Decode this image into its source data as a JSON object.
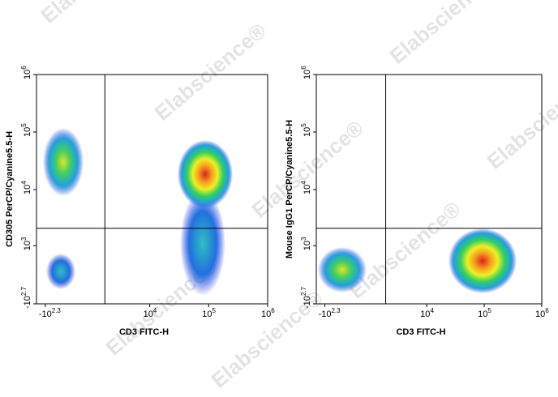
{
  "watermark": "Elabscience®",
  "chart_data": [
    {
      "type": "flow-density",
      "xlabel": "CD3 FITC-H",
      "ylabel": "CD305 PerCP/Cyanine5.5-H",
      "xscale": "biexponential",
      "yscale": "biexponential",
      "xlim": [
        -400,
        1000000
      ],
      "ylim": [
        -501,
        1000000
      ],
      "xticks": [
        {
          "value": -199.5,
          "label": "-10",
          "exponent": "2.3"
        },
        {
          "value": 10000,
          "label": "10",
          "exponent": "4"
        },
        {
          "value": 100000,
          "label": "10",
          "exponent": "5"
        },
        {
          "value": 1000000,
          "label": "10",
          "exponent": "6"
        }
      ],
      "yticks": [
        {
          "value": -501,
          "label": "-10",
          "exponent": "2.7"
        },
        {
          "value": 1000,
          "label": "10",
          "exponent": "3"
        },
        {
          "value": 10000,
          "label": "10",
          "exponent": "4"
        },
        {
          "value": 100000,
          "label": "10",
          "exponent": "5"
        },
        {
          "value": 1000000,
          "label": "10",
          "exponent": "6"
        }
      ],
      "gates": {
        "x": 1700,
        "y": 2100
      }
    },
    {
      "type": "flow-density",
      "xlabel": "CD3 FITC-H",
      "ylabel": "Mouse IgG1 PerCP/Cyanine5.5-H",
      "xscale": "biexponential",
      "yscale": "biexponential",
      "xlim": [
        -400,
        1000000
      ],
      "ylim": [
        -501,
        1000000
      ],
      "xticks": [
        {
          "value": -199.5,
          "label": "-10",
          "exponent": "2.3"
        },
        {
          "value": 10000,
          "label": "10",
          "exponent": "4"
        },
        {
          "value": 100000,
          "label": "10",
          "exponent": "5"
        },
        {
          "value": 1000000,
          "label": "10",
          "exponent": "6"
        }
      ],
      "yticks": [
        {
          "value": -501,
          "label": "-10",
          "exponent": "2.7"
        },
        {
          "value": 1000,
          "label": "10",
          "exponent": "3"
        },
        {
          "value": 10000,
          "label": "10",
          "exponent": "4"
        },
        {
          "value": 100000,
          "label": "10",
          "exponent": "5"
        },
        {
          "value": 1000000,
          "label": "10",
          "exponent": "6"
        }
      ],
      "gates": {
        "x": 1900,
        "y": 2100
      }
    }
  ]
}
